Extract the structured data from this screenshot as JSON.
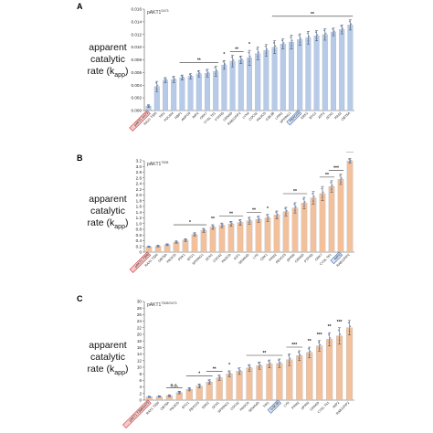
{
  "chart_data": [
    {
      "type": "bar",
      "panel": "A",
      "title": "pAKT1^S473",
      "ylabel": "apparent catalytic rate (k_app)",
      "ylim": [
        0,
        0.016
      ],
      "yticks": [
        "0.000",
        "0.002",
        "0.004",
        "0.006",
        "0.008",
        "0.010",
        "0.012",
        "0.014",
        "0.016"
      ],
      "bar_color": "#b7cbe8",
      "categories": [
        "pAKT1 S473",
        "RAX1 T336",
        "TIR1",
        "PDLIM4",
        "RBP1",
        "AMPD3",
        "IMP2",
        "GRK7",
        "CYSL T61",
        "PTPRD",
        "GRN6D",
        "RAB11FIP2",
        "LYN4",
        "CDC42",
        "PIK3CD",
        "GSK3B",
        "LPIN1",
        "SPRING1",
        "FBXO15",
        "ERK2",
        "BTG1",
        "ATP2",
        "SCN1",
        "RAS2",
        "OBT5A"
      ],
      "values": [
        0.0007,
        0.0038,
        0.0048,
        0.0049,
        0.0052,
        0.0054,
        0.0058,
        0.0059,
        0.0062,
        0.0072,
        0.0078,
        0.008,
        0.0083,
        0.009,
        0.0095,
        0.01,
        0.0105,
        0.0108,
        0.0112,
        0.0115,
        0.0118,
        0.012,
        0.0124,
        0.0128,
        0.0135
      ],
      "errors": [
        0.0002,
        0.0008,
        0.0004,
        0.0005,
        0.0004,
        0.0004,
        0.0005,
        0.0006,
        0.0008,
        0.0007,
        0.0009,
        0.0006,
        0.0012,
        0.001,
        0.0009,
        0.001,
        0.0008,
        0.0011,
        0.0009,
        0.001,
        0.0008,
        0.0009,
        0.0006,
        0.0007,
        0.0008
      ],
      "highlight_red": [
        0
      ],
      "highlight_blue": [
        18
      ],
      "significance": [
        {
          "from": 4,
          "to": 8,
          "label": "**"
        },
        {
          "from": 9,
          "to": 9,
          "label": "*"
        },
        {
          "from": 10,
          "to": 11,
          "label": "**"
        },
        {
          "from": 12,
          "to": 12,
          "label": "*"
        },
        {
          "from": 15,
          "to": 24,
          "label": "**"
        }
      ]
    },
    {
      "type": "bar",
      "panel": "B",
      "title": "pAKT1^T308",
      "ylabel": "apparent catalytic rate (k_app)",
      "ylim": [
        0,
        3.2
      ],
      "yticks": [
        "0",
        "0.2",
        "0.4",
        "0.6",
        "0.8",
        "1.0",
        "1.2",
        "1.4",
        "1.6",
        "1.8",
        "2.0",
        "2.2",
        "2.4",
        "2.6",
        "2.8",
        "3.0",
        "3.2"
      ],
      "bar_color": "#f2c19c",
      "categories": [
        "pAKT1 T308",
        "RAX1 T336",
        "OBT5A",
        "PIK3CD",
        "PDK1",
        "BTG1",
        "SPRING1",
        "SCN1",
        "CDC42",
        "PIK3CA",
        "IGF1",
        "SEMA4D",
        "LYN",
        "CDK1",
        "PRM2",
        "FBXO15",
        "SPRIN",
        "GRN6D",
        "PTPRD",
        "GRK7",
        "CYSL T61",
        "IMP2",
        "RAB11FIP2"
      ],
      "values": [
        0.19,
        0.21,
        0.26,
        0.35,
        0.42,
        0.62,
        0.76,
        0.88,
        0.94,
        0.99,
        1.04,
        1.1,
        1.15,
        1.2,
        1.3,
        1.42,
        1.55,
        1.72,
        1.9,
        2.05,
        2.3,
        2.55,
        3.2
      ],
      "errors": [
        0.02,
        0.03,
        0.03,
        0.04,
        0.05,
        0.06,
        0.07,
        0.08,
        0.08,
        0.09,
        0.1,
        0.12,
        0.11,
        0.12,
        0.14,
        0.15,
        0.18,
        0.2,
        0.22,
        0.25,
        0.2,
        0.18,
        0.08
      ],
      "highlight_red": [
        0
      ],
      "highlight_blue": [
        21
      ],
      "significance": [
        {
          "from": 3,
          "to": 6,
          "label": "*"
        },
        {
          "from": 7,
          "to": 7,
          "label": "**"
        },
        {
          "from": 8,
          "to": 10,
          "label": "**"
        },
        {
          "from": 11,
          "to": 12,
          "label": "**"
        },
        {
          "from": 13,
          "to": 13,
          "label": "*"
        },
        {
          "from": 15,
          "to": 17,
          "label": "**"
        },
        {
          "from": 19,
          "to": 20,
          "label": "**"
        },
        {
          "from": 20,
          "to": 21,
          "label": "***"
        },
        {
          "from": 22,
          "to": 22,
          "label": "****"
        }
      ]
    },
    {
      "type": "bar",
      "panel": "C",
      "title": "pAKT1^T308/S473",
      "ylabel": "apparent catalytic rate (k_app)",
      "ylim": [
        0,
        30
      ],
      "yticks": [
        "0",
        "2",
        "4",
        "6",
        "8",
        "10",
        "12",
        "14",
        "16",
        "18",
        "20",
        "22",
        "24",
        "26",
        "28",
        "30"
      ],
      "bar_color": "#f2c19c",
      "categories": [
        "pAKT1 T308/S473",
        "RAX1 T336",
        "OBT5A",
        "PIK3CD",
        "BTG1",
        "FBXO15",
        "ERK2",
        "SCN1",
        "SPRING1",
        "CDC42",
        "PIK3CA",
        "SEMA4D",
        "TIR1",
        "GSK3B",
        "LYN",
        "PRM2",
        "SPRIN",
        "GRN6D",
        "CYSL T61",
        "IMP2",
        "RAB11FIP2"
      ],
      "values": [
        1.0,
        1.1,
        1.3,
        2.3,
        3.3,
        4.3,
        5.5,
        6.8,
        8.0,
        8.8,
        9.8,
        10.5,
        11.0,
        11.2,
        12.3,
        13.5,
        14.5,
        16.5,
        18.5,
        19.5,
        22.0
      ],
      "errors": [
        0.2,
        0.2,
        0.3,
        0.4,
        0.5,
        0.6,
        0.7,
        0.8,
        0.9,
        1.0,
        1.0,
        1.1,
        1.2,
        1.3,
        1.8,
        1.5,
        1.6,
        1.6,
        2.0,
        2.5,
        2.2
      ],
      "highlight_red": [
        0
      ],
      "highlight_blue": [
        13
      ],
      "significance": [
        {
          "from": 2,
          "to": 3,
          "label": "n.s."
        },
        {
          "from": 4,
          "to": 6,
          "label": "*"
        },
        {
          "from": 6,
          "to": 7,
          "label": "**"
        },
        {
          "from": 8,
          "to": 8,
          "label": "*"
        },
        {
          "from": 10,
          "to": 13,
          "label": "**"
        },
        {
          "from": 14,
          "to": 15,
          "label": "***"
        },
        {
          "from": 16,
          "to": 16,
          "label": "**"
        },
        {
          "from": 17,
          "to": 17,
          "label": "***"
        },
        {
          "from": 18,
          "to": 18,
          "label": "**"
        },
        {
          "from": 19,
          "to": 19,
          "label": "***"
        }
      ]
    }
  ],
  "panels": {
    "A": {
      "letter": "A",
      "ylabel_line1": "apparent",
      "ylabel_line2": "catalytic",
      "ylabel_line3": "rate (k",
      "ylabel_sub": "app",
      "ylabel_end": ")"
    },
    "B": {
      "letter": "B",
      "ylabel_line1": "apparent",
      "ylabel_line2": "catalytic",
      "ylabel_line3": "rate (k",
      "ylabel_sub": "app",
      "ylabel_end": ")"
    },
    "C": {
      "letter": "C",
      "ylabel_line1": "apparent",
      "ylabel_line2": "catalytic",
      "ylabel_line3": "rate (k",
      "ylabel_sub": "app",
      "ylabel_end": ")"
    }
  }
}
